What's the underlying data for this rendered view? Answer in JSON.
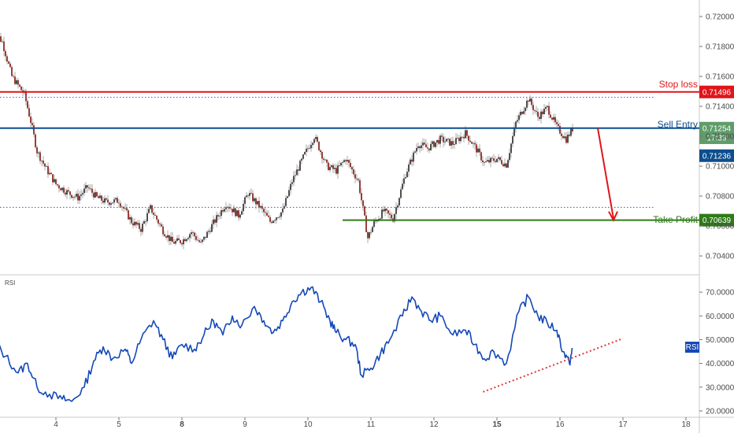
{
  "chart_data": [
    {
      "type": "candlestick",
      "panel": "price",
      "ylim": [
        0.7029,
        0.721
      ],
      "yticks": [
        "0.72000",
        "0.71800",
        "0.71600",
        "0.71400",
        "0.71200",
        "0.71000",
        "0.70800",
        "0.70600",
        "0.70400"
      ],
      "ytick_values": [
        0.72,
        0.718,
        0.716,
        0.714,
        0.712,
        0.71,
        0.708,
        0.706,
        0.704
      ],
      "xlim": [
        3.0,
        18.6
      ],
      "xticks": [
        {
          "label": "4",
          "x": 4,
          "bold": false
        },
        {
          "label": "5",
          "x": 5,
          "bold": false
        },
        {
          "label": "8",
          "x": 6,
          "bold": true
        },
        {
          "label": "9",
          "x": 7,
          "bold": false
        },
        {
          "label": "10",
          "x": 8,
          "bold": false
        },
        {
          "label": "11",
          "x": 9,
          "bold": false
        },
        {
          "label": "12",
          "x": 10,
          "bold": false
        },
        {
          "label": "15",
          "x": 11,
          "bold": true
        },
        {
          "label": "16",
          "x": 12,
          "bold": false
        },
        {
          "label": "17",
          "x": 13,
          "bold": false
        },
        {
          "label": "18",
          "x": 14,
          "bold": false
        }
      ],
      "close_path": [
        [
          3.0,
          0.7192
        ],
        [
          3.15,
          0.7183
        ],
        [
          3.3,
          0.716
        ],
        [
          3.5,
          0.7148
        ],
        [
          3.6,
          0.713
        ],
        [
          3.7,
          0.711
        ],
        [
          3.85,
          0.7098
        ],
        [
          4.0,
          0.7088
        ],
        [
          4.2,
          0.7082
        ],
        [
          4.35,
          0.7079
        ],
        [
          4.5,
          0.7086
        ],
        [
          4.65,
          0.7079
        ],
        [
          4.8,
          0.7076
        ],
        [
          5.0,
          0.7077
        ],
        [
          5.2,
          0.7063
        ],
        [
          5.35,
          0.7058
        ],
        [
          5.5,
          0.7072
        ],
        [
          5.7,
          0.7057
        ],
        [
          5.85,
          0.7049
        ],
        [
          6.0,
          0.705
        ],
        [
          6.15,
          0.7056
        ],
        [
          6.3,
          0.7048
        ],
        [
          6.5,
          0.7062
        ],
        [
          6.7,
          0.7075
        ],
        [
          6.9,
          0.7067
        ],
        [
          7.05,
          0.7082
        ],
        [
          7.25,
          0.7072
        ],
        [
          7.4,
          0.7063
        ],
        [
          7.6,
          0.707
        ],
        [
          7.75,
          0.709
        ],
        [
          7.95,
          0.7108
        ],
        [
          8.1,
          0.712
        ],
        [
          8.3,
          0.71
        ],
        [
          8.45,
          0.7097
        ],
        [
          8.6,
          0.7105
        ],
        [
          8.8,
          0.709
        ],
        [
          8.95,
          0.7052
        ],
        [
          9.05,
          0.7062
        ],
        [
          9.2,
          0.707
        ],
        [
          9.35,
          0.7065
        ],
        [
          9.55,
          0.7095
        ],
        [
          9.75,
          0.7115
        ],
        [
          9.9,
          0.7112
        ],
        [
          10.1,
          0.7118
        ],
        [
          10.3,
          0.7115
        ],
        [
          10.5,
          0.7122
        ],
        [
          10.65,
          0.7113
        ],
        [
          10.8,
          0.7102
        ],
        [
          11.0,
          0.7105
        ],
        [
          11.15,
          0.7101
        ],
        [
          11.3,
          0.7129
        ],
        [
          11.5,
          0.7145
        ],
        [
          11.65,
          0.7133
        ],
        [
          11.8,
          0.7139
        ],
        [
          11.95,
          0.7126
        ],
        [
          12.1,
          0.7118
        ],
        [
          12.2,
          0.7125
        ]
      ],
      "series": [
        {
          "name": "Stop loss",
          "y": 0.71496,
          "color": "#e0151a"
        },
        {
          "name": "Sell Entry",
          "y": 0.71254,
          "color": "#0d4e8e"
        },
        {
          "name": "Take Profit",
          "y": 0.70639,
          "color": "#2f7a19"
        }
      ],
      "projection_arrow": {
        "from": [
          12.6,
          0.71254
        ],
        "to": [
          12.85,
          0.70639
        ],
        "color": "#e0151a"
      },
      "dotted_reference_lines": [
        {
          "y": 0.7146,
          "color": "#3a57b5"
        },
        {
          "y": 0.70725,
          "color": "#3a57b5"
        }
      ],
      "price_tags": [
        {
          "text": "0.71496",
          "y": 0.71496,
          "color": "#e0151a"
        },
        {
          "text": "0.71254",
          "y": 0.71254,
          "color": "#5f9c6a"
        },
        {
          "text": "17:39",
          "y": 0.7119,
          "color": "#5f9c6a"
        },
        {
          "text": "0.71236",
          "y": 0.7107,
          "color": "#0d4e8e"
        },
        {
          "text": "0.70639",
          "y": 0.70639,
          "color": "#2f7a19"
        }
      ]
    },
    {
      "type": "line",
      "panel": "indicator",
      "title": "RSI",
      "ylim": [
        18,
        75
      ],
      "yticks": [
        "70.0000",
        "60.0000",
        "50.0000",
        "40.0000",
        "30.0000",
        "20.0000"
      ],
      "ytick_values": [
        70,
        60,
        50,
        40,
        30,
        20
      ],
      "series": [
        {
          "name": "RSI",
          "color": "#1448b8",
          "points": [
            [
              3.0,
              50
            ],
            [
              3.2,
              43
            ],
            [
              3.4,
              36
            ],
            [
              3.55,
              40
            ],
            [
              3.7,
              30
            ],
            [
              3.9,
              27
            ],
            [
              4.1,
              25
            ],
            [
              4.25,
              24
            ],
            [
              4.45,
              30
            ],
            [
              4.6,
              41
            ],
            [
              4.75,
              47
            ],
            [
              4.9,
              42
            ],
            [
              5.1,
              46
            ],
            [
              5.2,
              40
            ],
            [
              5.35,
              50
            ],
            [
              5.55,
              58
            ],
            [
              5.7,
              50
            ],
            [
              5.85,
              42
            ],
            [
              6.0,
              48
            ],
            [
              6.2,
              46
            ],
            [
              6.35,
              52
            ],
            [
              6.5,
              58
            ],
            [
              6.65,
              52
            ],
            [
              6.8,
              60
            ],
            [
              6.95,
              56
            ],
            [
              7.15,
              64
            ],
            [
              7.3,
              58
            ],
            [
              7.45,
              53
            ],
            [
              7.6,
              58
            ],
            [
              7.75,
              66
            ],
            [
              7.9,
              70
            ],
            [
              8.05,
              72
            ],
            [
              8.2,
              66
            ],
            [
              8.35,
              58
            ],
            [
              8.45,
              53
            ],
            [
              8.6,
              50
            ],
            [
              8.75,
              48
            ],
            [
              8.85,
              35
            ],
            [
              9.0,
              38
            ],
            [
              9.15,
              44
            ],
            [
              9.3,
              50
            ],
            [
              9.5,
              60
            ],
            [
              9.65,
              68
            ],
            [
              9.8,
              62
            ],
            [
              9.95,
              58
            ],
            [
              10.1,
              60
            ],
            [
              10.3,
              52
            ],
            [
              10.5,
              54
            ],
            [
              10.65,
              48
            ],
            [
              10.8,
              42
            ],
            [
              10.95,
              45
            ],
            [
              11.15,
              40
            ],
            [
              11.35,
              62
            ],
            [
              11.5,
              68
            ],
            [
              11.65,
              60
            ],
            [
              11.8,
              57
            ],
            [
              11.95,
              54
            ],
            [
              12.05,
              45
            ],
            [
              12.15,
              40
            ],
            [
              12.2,
              46
            ]
          ]
        }
      ],
      "trendline": {
        "from": [
          10.78,
          28
        ],
        "to": [
          13.0,
          50.5
        ],
        "color": "#d93a3a"
      },
      "legend_tag": "RSI"
    }
  ],
  "labels": {
    "stop_loss": "Stop loss",
    "sell_entry": "Sell Entry",
    "take_profit": "Take Profit",
    "rsi_title": "RSI",
    "rsi_tag": "RSI"
  }
}
